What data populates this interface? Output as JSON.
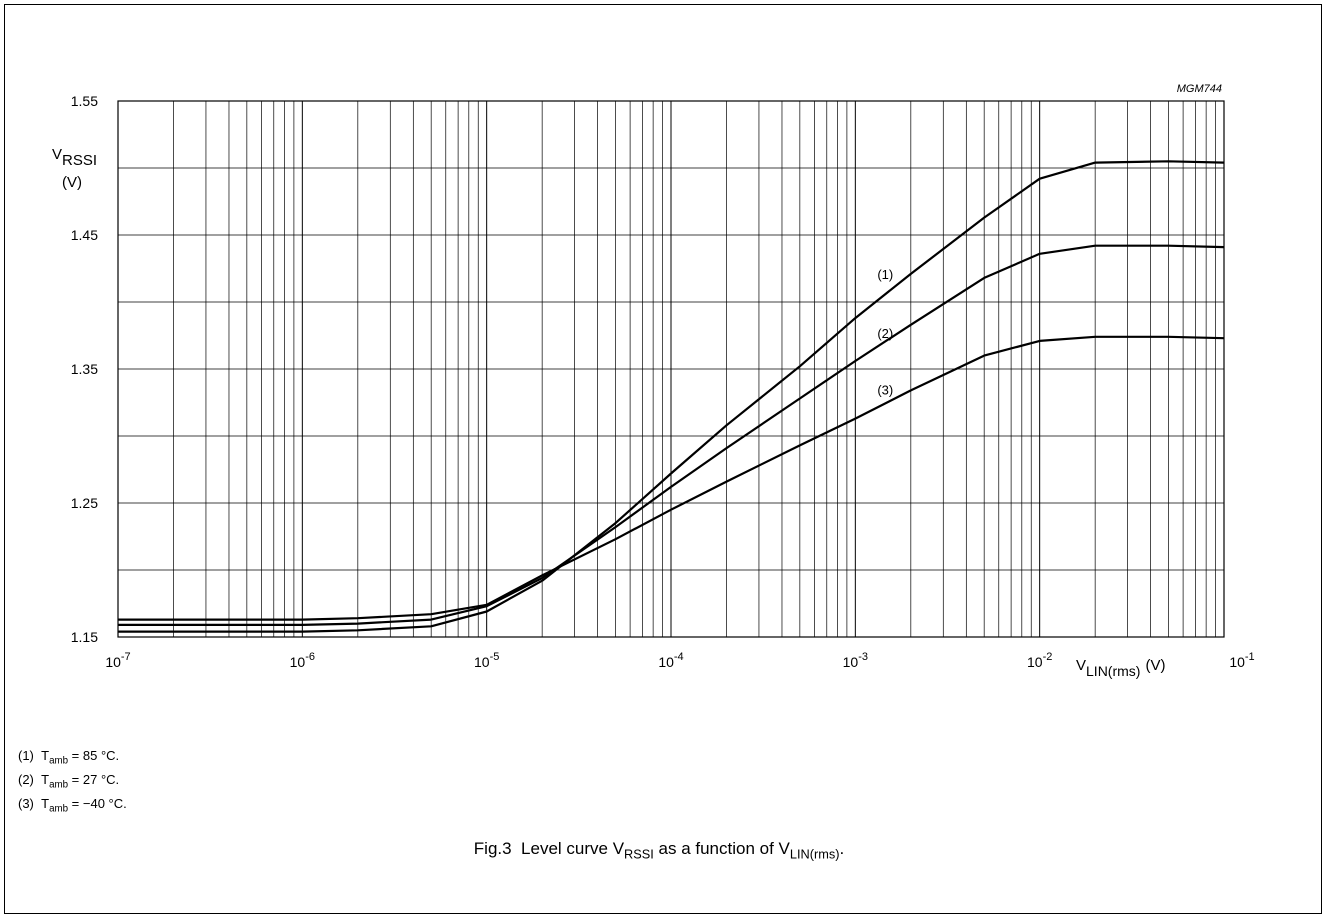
{
  "figure_code": "MGM744",
  "chart_data": {
    "type": "line",
    "x_scale": "log",
    "xlim": [
      1e-07,
      0.1
    ],
    "ylim": [
      1.15,
      1.55
    ],
    "grid": true,
    "y_ticks": [
      "1.15",
      "1.25",
      "1.35",
      "1.45",
      "1.55"
    ],
    "x_ticks": [
      {
        "base": "10",
        "exp": "-7"
      },
      {
        "base": "10",
        "exp": "-6"
      },
      {
        "base": "10",
        "exp": "-5"
      },
      {
        "base": "10",
        "exp": "-4"
      },
      {
        "base": "10",
        "exp": "-3"
      },
      {
        "base": "10",
        "exp": "-2"
      },
      {
        "base": "10",
        "exp": "-1"
      }
    ],
    "ylabel": {
      "main": "V",
      "sub": "RSSI",
      "unit": "(V)"
    },
    "xlabel": {
      "main": "V",
      "sub": "LIN(rms)",
      "unit": "(V)"
    },
    "series": [
      {
        "name": "(1)",
        "x": [
          1e-07,
          1e-06,
          2e-06,
          5e-06,
          1e-05,
          2e-05,
          5e-05,
          0.0001,
          0.0002,
          0.0005,
          0.001,
          0.002,
          0.005,
          0.01,
          0.02,
          0.05,
          0.1
        ],
        "y": [
          1.154,
          1.154,
          1.155,
          1.158,
          1.169,
          1.192,
          1.235,
          1.272,
          1.308,
          1.352,
          1.388,
          1.421,
          1.463,
          1.492,
          1.504,
          1.505,
          1.504
        ]
      },
      {
        "name": "(2)",
        "x": [
          1e-07,
          1e-06,
          2e-06,
          5e-06,
          1e-05,
          2e-05,
          5e-05,
          0.0001,
          0.0002,
          0.0005,
          0.001,
          0.002,
          0.005,
          0.01,
          0.02,
          0.05,
          0.1
        ],
        "y": [
          1.159,
          1.159,
          1.16,
          1.163,
          1.173,
          1.194,
          1.232,
          1.262,
          1.291,
          1.328,
          1.356,
          1.383,
          1.418,
          1.436,
          1.442,
          1.442,
          1.441
        ]
      },
      {
        "name": "(3)",
        "x": [
          1e-07,
          1e-06,
          2e-06,
          5e-06,
          1e-05,
          2e-05,
          5e-05,
          0.0001,
          0.0002,
          0.0005,
          0.001,
          0.002,
          0.005,
          0.01,
          0.02,
          0.05,
          0.1
        ],
        "y": [
          1.163,
          1.163,
          1.164,
          1.167,
          1.174,
          1.196,
          1.223,
          1.245,
          1.266,
          1.293,
          1.313,
          1.334,
          1.36,
          1.371,
          1.374,
          1.374,
          1.373
        ]
      }
    ]
  },
  "notes": [
    {
      "num": "(1)",
      "main": "T",
      "sub": "amb",
      "value": "= 85 °C."
    },
    {
      "num": "(2)",
      "main": "T",
      "sub": "amb",
      "value": "= 27 °C."
    },
    {
      "num": "(3)",
      "main": "T",
      "sub": "amb",
      "value": "= −40 °C."
    }
  ],
  "caption": {
    "fig": "Fig.3",
    "text1": "Level curve V",
    "sub1": "RSSI",
    "text2": " as a function of V",
    "sub2": "LIN(rms)",
    "text3": "."
  }
}
